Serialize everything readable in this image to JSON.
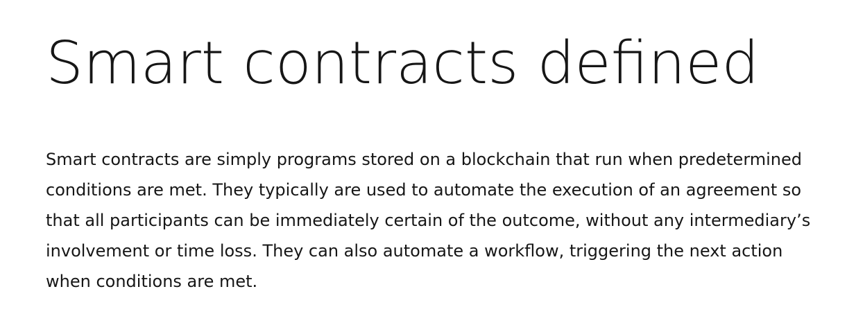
{
  "article": {
    "title": "Smart contracts defined",
    "paragraph": "Smart contracts are simply programs stored on a blockchain that run when predetermined conditions are met. They typically are used to automate the execution of an agreement so that all participants can be immediately certain of the outcome, without any intermediary’s involvement or time loss. They can also automate a workflow, triggering the next action when conditions are met."
  },
  "colors": {
    "text": "#161616",
    "background": "#ffffff"
  }
}
